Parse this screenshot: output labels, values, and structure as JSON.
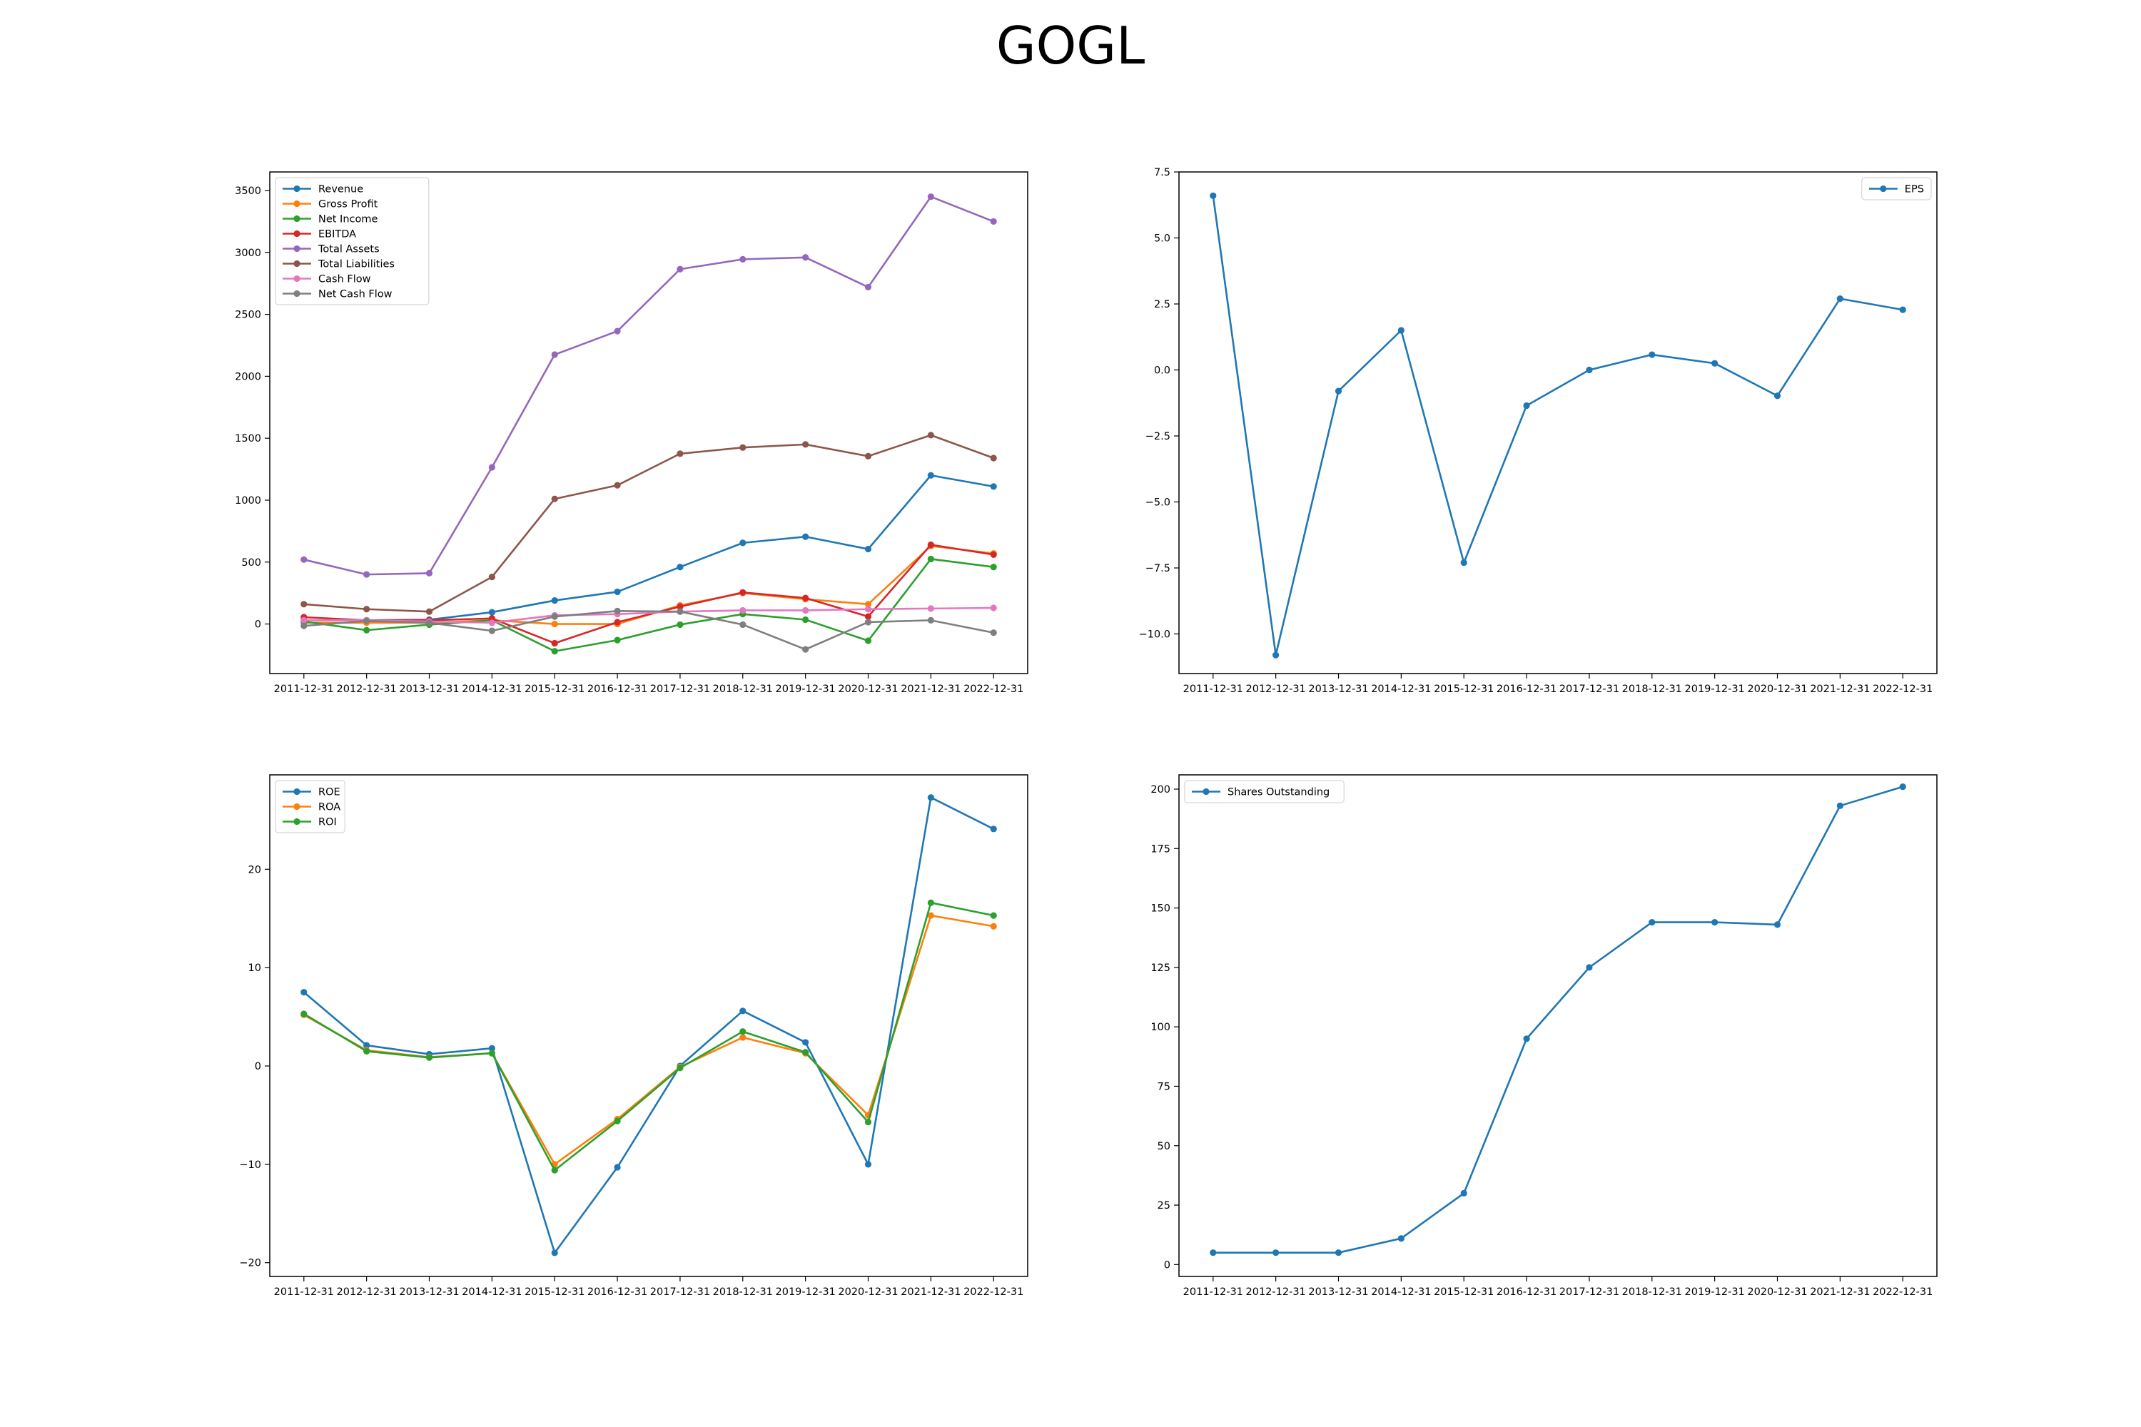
{
  "title": "GOGL",
  "x_categories": [
    "2011-12-31",
    "2012-12-31",
    "2013-12-31",
    "2014-12-31",
    "2015-12-31",
    "2016-12-31",
    "2017-12-31",
    "2018-12-31",
    "2019-12-31",
    "2020-12-31",
    "2021-12-31",
    "2022-12-31"
  ],
  "chart_data": [
    {
      "type": "line",
      "legend": "upper-left",
      "ylim": [
        -400,
        3650
      ],
      "yticks": [
        0,
        500,
        1000,
        1500,
        2000,
        2500,
        3000,
        3500
      ],
      "series": [
        {
          "name": "Revenue",
          "color": "#1f77b4",
          "values": [
            30,
            30,
            35,
            95,
            190,
            260,
            460,
            655,
            705,
            605,
            1200,
            1110
          ]
        },
        {
          "name": "Gross Profit",
          "color": "#ff7f0e",
          "values": [
            10,
            10,
            10,
            30,
            0,
            0,
            150,
            250,
            200,
            160,
            630,
            570
          ]
        },
        {
          "name": "Net Income",
          "color": "#2ca02c",
          "values": [
            20,
            -50,
            -5,
            30,
            -220,
            -130,
            -5,
            80,
            35,
            -135,
            525,
            460
          ]
        },
        {
          "name": "EBITDA",
          "color": "#d62728",
          "values": [
            55,
            30,
            30,
            45,
            -155,
            15,
            140,
            255,
            210,
            60,
            640,
            560
          ]
        },
        {
          "name": "Total Assets",
          "color": "#9467bd",
          "values": [
            520,
            400,
            410,
            1265,
            2175,
            2365,
            2865,
            2945,
            2960,
            2720,
            3450,
            3250
          ]
        },
        {
          "name": "Total Liabilities",
          "color": "#8c564b",
          "values": [
            160,
            120,
            100,
            380,
            1010,
            1120,
            1375,
            1425,
            1450,
            1355,
            1525,
            1340
          ]
        },
        {
          "name": "Cash Flow",
          "color": "#e377c2",
          "values": [
            30,
            30,
            20,
            10,
            70,
            80,
            100,
            110,
            110,
            120,
            125,
            130
          ]
        },
        {
          "name": "Net Cash Flow",
          "color": "#7f7f7f",
          "values": [
            -15,
            25,
            10,
            -55,
            60,
            105,
            100,
            -5,
            -205,
            15,
            30,
            -70
          ]
        }
      ]
    },
    {
      "type": "line",
      "legend": "upper-right",
      "ylim": [
        -11.5,
        7.5
      ],
      "yticks": [
        -10.0,
        -7.5,
        -5.0,
        -2.5,
        0.0,
        2.5,
        5.0,
        7.5
      ],
      "series": [
        {
          "name": "EPS",
          "color": "#1f77b4",
          "values": [
            6.6,
            -10.8,
            -0.8,
            1.5,
            -7.3,
            -1.35,
            0.0,
            0.58,
            0.25,
            -0.98,
            2.7,
            2.28
          ]
        }
      ]
    },
    {
      "type": "line",
      "legend": "upper-left",
      "ylim": [
        -21.4,
        29.6
      ],
      "yticks": [
        -20,
        -10,
        0,
        10,
        20
      ],
      "series": [
        {
          "name": "ROE",
          "color": "#1f77b4",
          "values": [
            7.5,
            2.1,
            1.2,
            1.8,
            -19.0,
            -10.3,
            0.0,
            5.6,
            2.4,
            -10.0,
            27.3,
            24.1
          ]
        },
        {
          "name": "ROA",
          "color": "#ff7f0e",
          "values": [
            5.2,
            1.6,
            0.9,
            1.3,
            -10.0,
            -5.4,
            -0.1,
            2.9,
            1.3,
            -5.0,
            15.3,
            14.2
          ]
        },
        {
          "name": "ROI",
          "color": "#2ca02c",
          "values": [
            5.3,
            1.5,
            0.85,
            1.3,
            -10.6,
            -5.6,
            -0.2,
            3.5,
            1.4,
            -5.7,
            16.6,
            15.3
          ]
        }
      ]
    },
    {
      "type": "line",
      "legend": "upper-left",
      "ylim": [
        -5,
        206
      ],
      "yticks": [
        0,
        25,
        50,
        75,
        100,
        125,
        150,
        175,
        200
      ],
      "series": [
        {
          "name": "Shares Outstanding",
          "color": "#1f77b4",
          "values": [
            5,
            5,
            5,
            11,
            30,
            95,
            125,
            144,
            144,
            143,
            193,
            201
          ]
        }
      ]
    }
  ]
}
